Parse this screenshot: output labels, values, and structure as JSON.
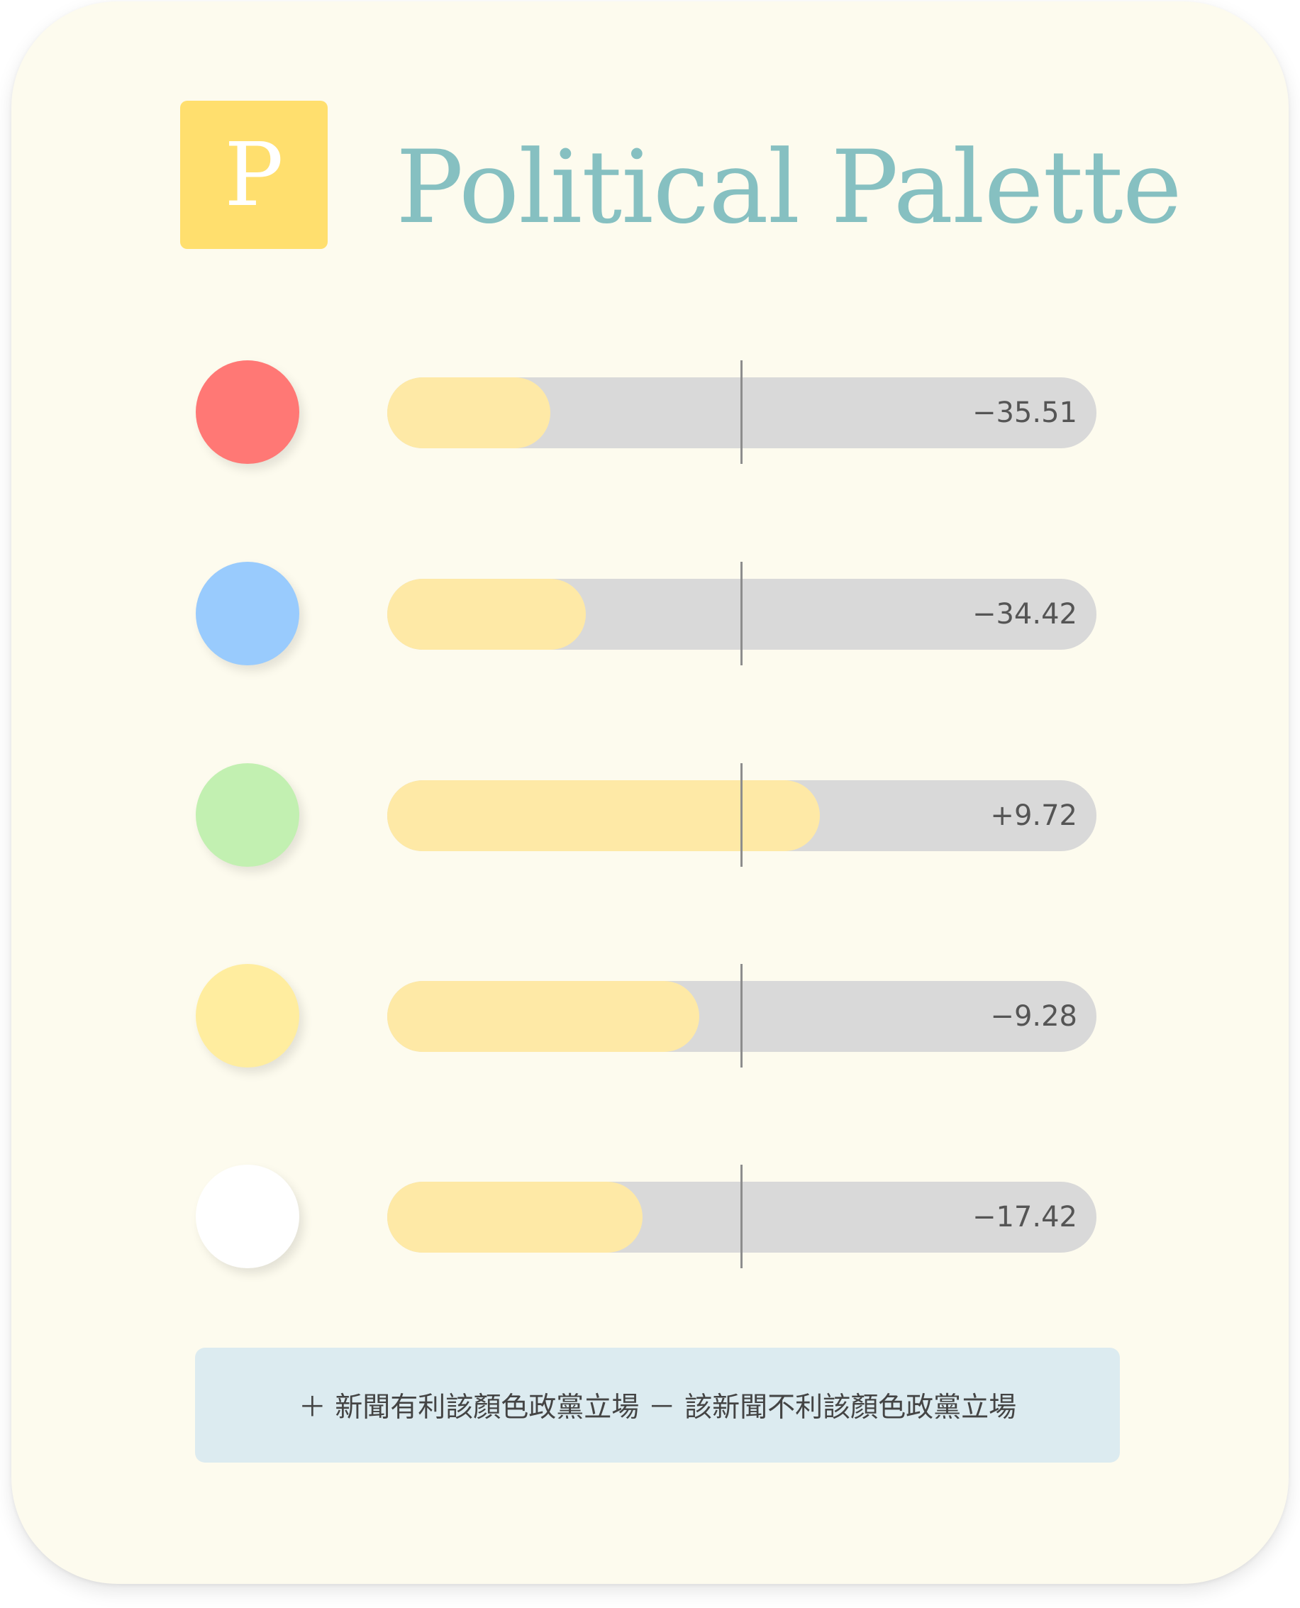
{
  "app": {
    "title": "Political Palette",
    "logo_letter": "P"
  },
  "colors": {
    "card_bg": "#fdfbee",
    "logo_bg": "#ffdf6e",
    "title_color": "#86c0c1",
    "track_bg": "#d9d9d9",
    "fill_color": "#fee9a6",
    "legend_bg": "#dcebf0"
  },
  "rows": [
    {
      "color": "#ff7875",
      "value_label": "−35.51",
      "score": -35.51,
      "fill_fraction": 0.23
    },
    {
      "color": "#99cbfd",
      "value_label": "−34.42",
      "score": -34.42,
      "fill_fraction": 0.28
    },
    {
      "color": "#c2f0b1",
      "value_label": "+9.72",
      "score": 9.72,
      "fill_fraction": 0.61
    },
    {
      "color": "#ffed9f",
      "value_label": "−9.28",
      "score": -9.28,
      "fill_fraction": 0.44
    },
    {
      "color": "#ffffff",
      "value_label": "−17.42",
      "score": -17.42,
      "fill_fraction": 0.36
    }
  ],
  "legend": {
    "text": "＋ 新聞有利該顏色政黨立場 － 該新聞不利該顏色政黨立場"
  }
}
